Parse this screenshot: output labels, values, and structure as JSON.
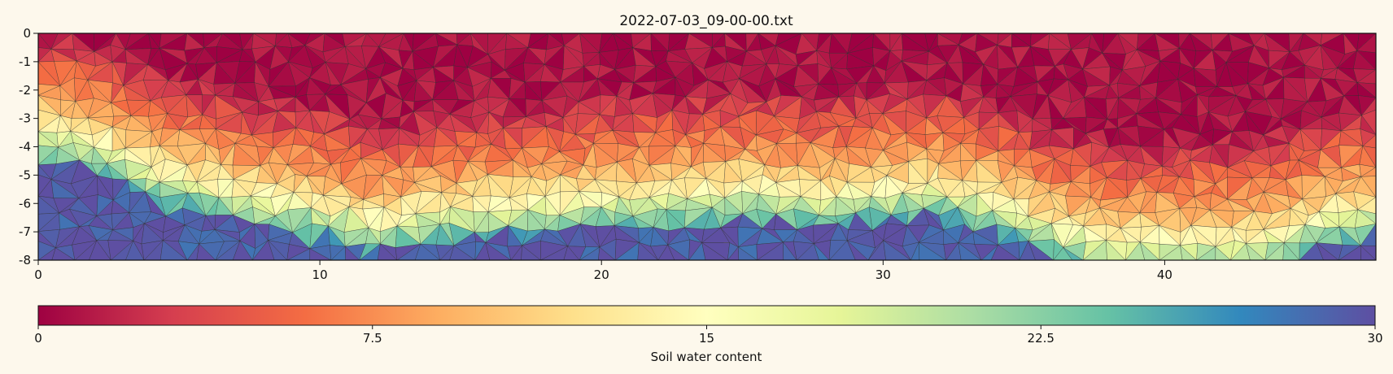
{
  "chart_data": {
    "type": "heatmap",
    "title": "2022-07-03_09-00-00.txt",
    "xlabel": "",
    "ylabel": "",
    "xlim": [
      0,
      47.5
    ],
    "ylim": [
      -8,
      0
    ],
    "xticks": [
      "0",
      "10",
      "20",
      "30",
      "40"
    ],
    "xtick_values": [
      0,
      10,
      20,
      30,
      40
    ],
    "yticks": [
      "0",
      "-1",
      "-2",
      "-3",
      "-4",
      "-5",
      "-6",
      "-7",
      "-8"
    ],
    "ytick_values": [
      0,
      -1,
      -2,
      -3,
      -4,
      -5,
      -6,
      -7,
      -8
    ],
    "mesh": "triangular",
    "colormap": "Spectral",
    "colorbar": {
      "label": "Soil water content",
      "range": [
        0,
        30
      ],
      "ticks": [
        "0",
        "7.5",
        "15",
        "22.5",
        "30"
      ],
      "tick_values": [
        0,
        7.5,
        15,
        22.5,
        30
      ]
    },
    "approx_profile": {
      "x": [
        0,
        2,
        4,
        6,
        8,
        10,
        12,
        14,
        16,
        18,
        20,
        22,
        24,
        26,
        28,
        30,
        32,
        34,
        36,
        38,
        40,
        42,
        44,
        46,
        47.5
      ],
      "wet_front_depth": [
        -4.0,
        -4.5,
        -5.5,
        -6.0,
        -6.5,
        -6.8,
        -7.3,
        -7.0,
        -6.8,
        -6.7,
        -6.5,
        -6.4,
        -6.3,
        -6.2,
        -6.4,
        -6.2,
        -6.1,
        -6.6,
        -7.5,
        -8.0,
        -8.0,
        -8.0,
        -7.8,
        -7.0,
        -6.8
      ]
    },
    "colors": {
      "dry": "#9e0142",
      "mid": "#ffffbf",
      "wet": "#5e4fa2"
    }
  }
}
